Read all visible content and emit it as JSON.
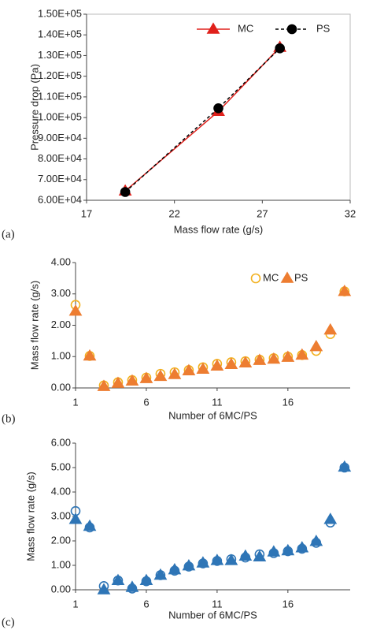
{
  "chart_data": [
    {
      "type": "line",
      "panel_label": "(a)",
      "x_label": "Mass flow rate (g/s)",
      "y_label": "Pressure drop (Pa)",
      "x": [
        19.2,
        24.5,
        28.0
      ],
      "series": [
        {
          "name": "MC",
          "color": "#e0201b",
          "marker": "triangle",
          "dash": false,
          "values": [
            64500,
            103000,
            134000
          ]
        },
        {
          "name": "PS",
          "color": "#000000",
          "marker": "circle",
          "dash": true,
          "values": [
            64000,
            104500,
            133500
          ]
        }
      ],
      "xlim": [
        17,
        32
      ],
      "xticks": [
        17,
        22,
        27,
        32
      ],
      "ylim": [
        60000,
        150000
      ],
      "yticks": [
        {
          "value": 60000,
          "label": "6.00E+04"
        },
        {
          "value": 70000,
          "label": "7.00E+04"
        },
        {
          "value": 80000,
          "label": "8.00E+04"
        },
        {
          "value": 90000,
          "label": "9.00E+04"
        },
        {
          "value": 100000,
          "label": "1.00E+05"
        },
        {
          "value": 110000,
          "label": "1.10E+05"
        },
        {
          "value": 120000,
          "label": "1.20E+05"
        },
        {
          "value": 130000,
          "label": "1.30E+05"
        },
        {
          "value": 140000,
          "label": "1.40E+05"
        },
        {
          "value": 150000,
          "label": "1.50E+05"
        }
      ],
      "legend": "top right",
      "frame": true
    },
    {
      "type": "scatter",
      "panel_label": "(b)",
      "x_label": "Number of 6MC/PS",
      "y_label": "Mass flow rate (g/s)",
      "x": [
        1,
        2,
        3,
        4,
        5,
        6,
        7,
        8,
        9,
        10,
        11,
        12,
        13,
        14,
        15,
        16,
        17,
        18,
        19,
        20
      ],
      "series": [
        {
          "name": "MC",
          "color": "#f2b01e",
          "marker": "circle",
          "filled": false,
          "values": [
            2.65,
            1.02,
            0.08,
            0.18,
            0.25,
            0.33,
            0.45,
            0.5,
            0.57,
            0.66,
            0.77,
            0.82,
            0.85,
            0.9,
            0.95,
            1.0,
            1.05,
            1.18,
            1.72,
            3.08
          ]
        },
        {
          "name": "PS",
          "color": "#ed7d31",
          "marker": "triangle",
          "filled": true,
          "values": [
            2.45,
            1.02,
            0.05,
            0.15,
            0.22,
            0.3,
            0.37,
            0.43,
            0.55,
            0.6,
            0.7,
            0.75,
            0.8,
            0.88,
            0.92,
            0.98,
            1.05,
            1.32,
            1.85,
            3.08
          ]
        }
      ],
      "xlim": [
        1,
        20.4
      ],
      "xticks": [
        1,
        6,
        11,
        16
      ],
      "ylim": [
        0,
        4
      ],
      "yticks": [
        {
          "value": 0,
          "label": "0.00"
        },
        {
          "value": 1,
          "label": "1.00"
        },
        {
          "value": 2,
          "label": "2.00"
        },
        {
          "value": 3,
          "label": "3.00"
        },
        {
          "value": 4,
          "label": "4.00"
        }
      ],
      "legend": "top right",
      "frame": false
    },
    {
      "type": "scatter",
      "panel_label": "(c)",
      "x_label": "Number of 6MC/PS",
      "y_label": "Mass flow rate (g/s)",
      "x": [
        1,
        2,
        3,
        4,
        5,
        6,
        7,
        8,
        9,
        10,
        11,
        12,
        13,
        14,
        15,
        16,
        17,
        18,
        19,
        20
      ],
      "series": [
        {
          "color": "#2e75b6",
          "marker": "circle",
          "filled": false,
          "values": [
            3.22,
            2.55,
            0.15,
            0.38,
            0.05,
            0.35,
            0.6,
            0.78,
            0.95,
            1.08,
            1.18,
            1.25,
            1.32,
            1.45,
            1.5,
            1.58,
            1.68,
            1.92,
            2.75,
            5.0
          ]
        },
        {
          "color": "#2e75b6",
          "marker": "triangle",
          "filled": true,
          "values": [
            2.88,
            2.6,
            0.0,
            0.38,
            0.1,
            0.38,
            0.6,
            0.82,
            0.98,
            1.1,
            1.2,
            1.2,
            1.38,
            1.35,
            1.55,
            1.6,
            1.72,
            1.98,
            2.88,
            5.02
          ]
        }
      ],
      "xlim": [
        1,
        20.4
      ],
      "xticks": [
        1,
        6,
        11,
        16
      ],
      "ylim": [
        0,
        6
      ],
      "yticks": [
        {
          "value": 0,
          "label": "0.00"
        },
        {
          "value": 1,
          "label": "1.00"
        },
        {
          "value": 2,
          "label": "2.00"
        },
        {
          "value": 3,
          "label": "3.00"
        },
        {
          "value": 4,
          "label": "4.00"
        },
        {
          "value": 5,
          "label": "5.00"
        },
        {
          "value": 6,
          "label": "6.00"
        }
      ],
      "frame": false
    }
  ]
}
